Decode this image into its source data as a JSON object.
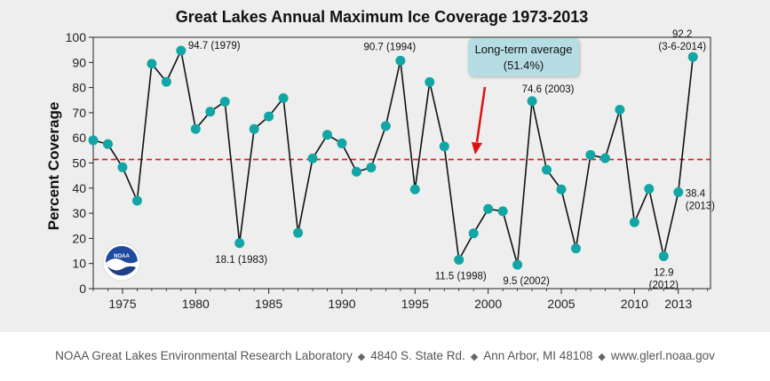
{
  "chart_data": {
    "type": "line",
    "title": "Great Lakes Annual Maximum Ice Coverage 1973-2013",
    "xlabel": "",
    "ylabel": "Percent Coverage",
    "xlim": [
      1973,
      2015.2
    ],
    "ylim": [
      0,
      100
    ],
    "xticks": [
      "1975",
      "1980",
      "1985",
      "1990",
      "1995",
      "2000",
      "2005",
      "2010",
      "2013"
    ],
    "xtick_values": [
      1975,
      1980,
      1985,
      1990,
      1995,
      2000,
      2005,
      2010,
      2013
    ],
    "yticks": [
      "0",
      "10",
      "20",
      "30",
      "40",
      "50",
      "60",
      "70",
      "80",
      "90",
      "100"
    ],
    "ytick_values": [
      0,
      10,
      20,
      30,
      40,
      50,
      60,
      70,
      80,
      90,
      100
    ],
    "grid": false,
    "series": [
      {
        "color": "#12a5a5",
        "x": [
          1973,
          1974,
          1975,
          1976,
          1977,
          1978,
          1979,
          1980,
          1981,
          1982,
          1983,
          1984,
          1985,
          1986,
          1987,
          1988,
          1989,
          1990,
          1991,
          1992,
          1993,
          1994,
          1995,
          1996,
          1997,
          1998,
          1999,
          2000,
          2001,
          2002,
          2003,
          2004,
          2005,
          2006,
          2007,
          2008,
          2009,
          2010,
          2011,
          2012,
          2013,
          2014
        ],
        "values": [
          59,
          57.5,
          48.3,
          35,
          89.5,
          82.3,
          94.7,
          63.5,
          70.4,
          74.4,
          18.1,
          63.5,
          68.5,
          75.8,
          22.2,
          51.8,
          61.2,
          57.8,
          46.5,
          48.2,
          64.7,
          90.7,
          39.5,
          82.2,
          56.6,
          11.5,
          22,
          31.7,
          30.8,
          9.5,
          74.6,
          47.3,
          39.5,
          16,
          53.2,
          51.9,
          71.2,
          26.4,
          39.7,
          12.9,
          38.4,
          92.2
        ]
      }
    ],
    "reference_line": {
      "value": 51.4,
      "color": "#cc2222",
      "style": "dashed"
    },
    "callout": {
      "line1": "Long-term average",
      "line2": "(51.4%)",
      "color": "#b6dde4"
    },
    "annotations": [
      {
        "year": 1979,
        "value": 94.7,
        "text": "94.7 (1979)"
      },
      {
        "year": 1983,
        "value": 18.1,
        "text": "18.1 (1983)"
      },
      {
        "year": 1994,
        "value": 90.7,
        "text": "90.7 (1994)"
      },
      {
        "year": 1998,
        "value": 11.5,
        "text": "11.5 (1998)"
      },
      {
        "year": 2002,
        "value": 9.5,
        "text": "9.5 (2002)"
      },
      {
        "year": 2003,
        "value": 74.6,
        "text": "74.6 (2003)"
      },
      {
        "year": 2012,
        "value": 12.9,
        "text": "12.9",
        "text2": "(2012)"
      },
      {
        "year": 2013,
        "value": 38.4,
        "text": "38.4",
        "text2": "(2013)"
      },
      {
        "year": 2014,
        "value": 92.2,
        "text": "92.2",
        "text2": "(3-6-2014)"
      }
    ]
  },
  "logo": {
    "text": "NOAA"
  },
  "footer": {
    "org": "NOAA Great Lakes Environmental Research Laboratory",
    "address": "4840 S. State Rd.",
    "city": "Ann Arbor, MI 48108",
    "url": "www.glerl.noaa.gov",
    "separator": "◆"
  }
}
